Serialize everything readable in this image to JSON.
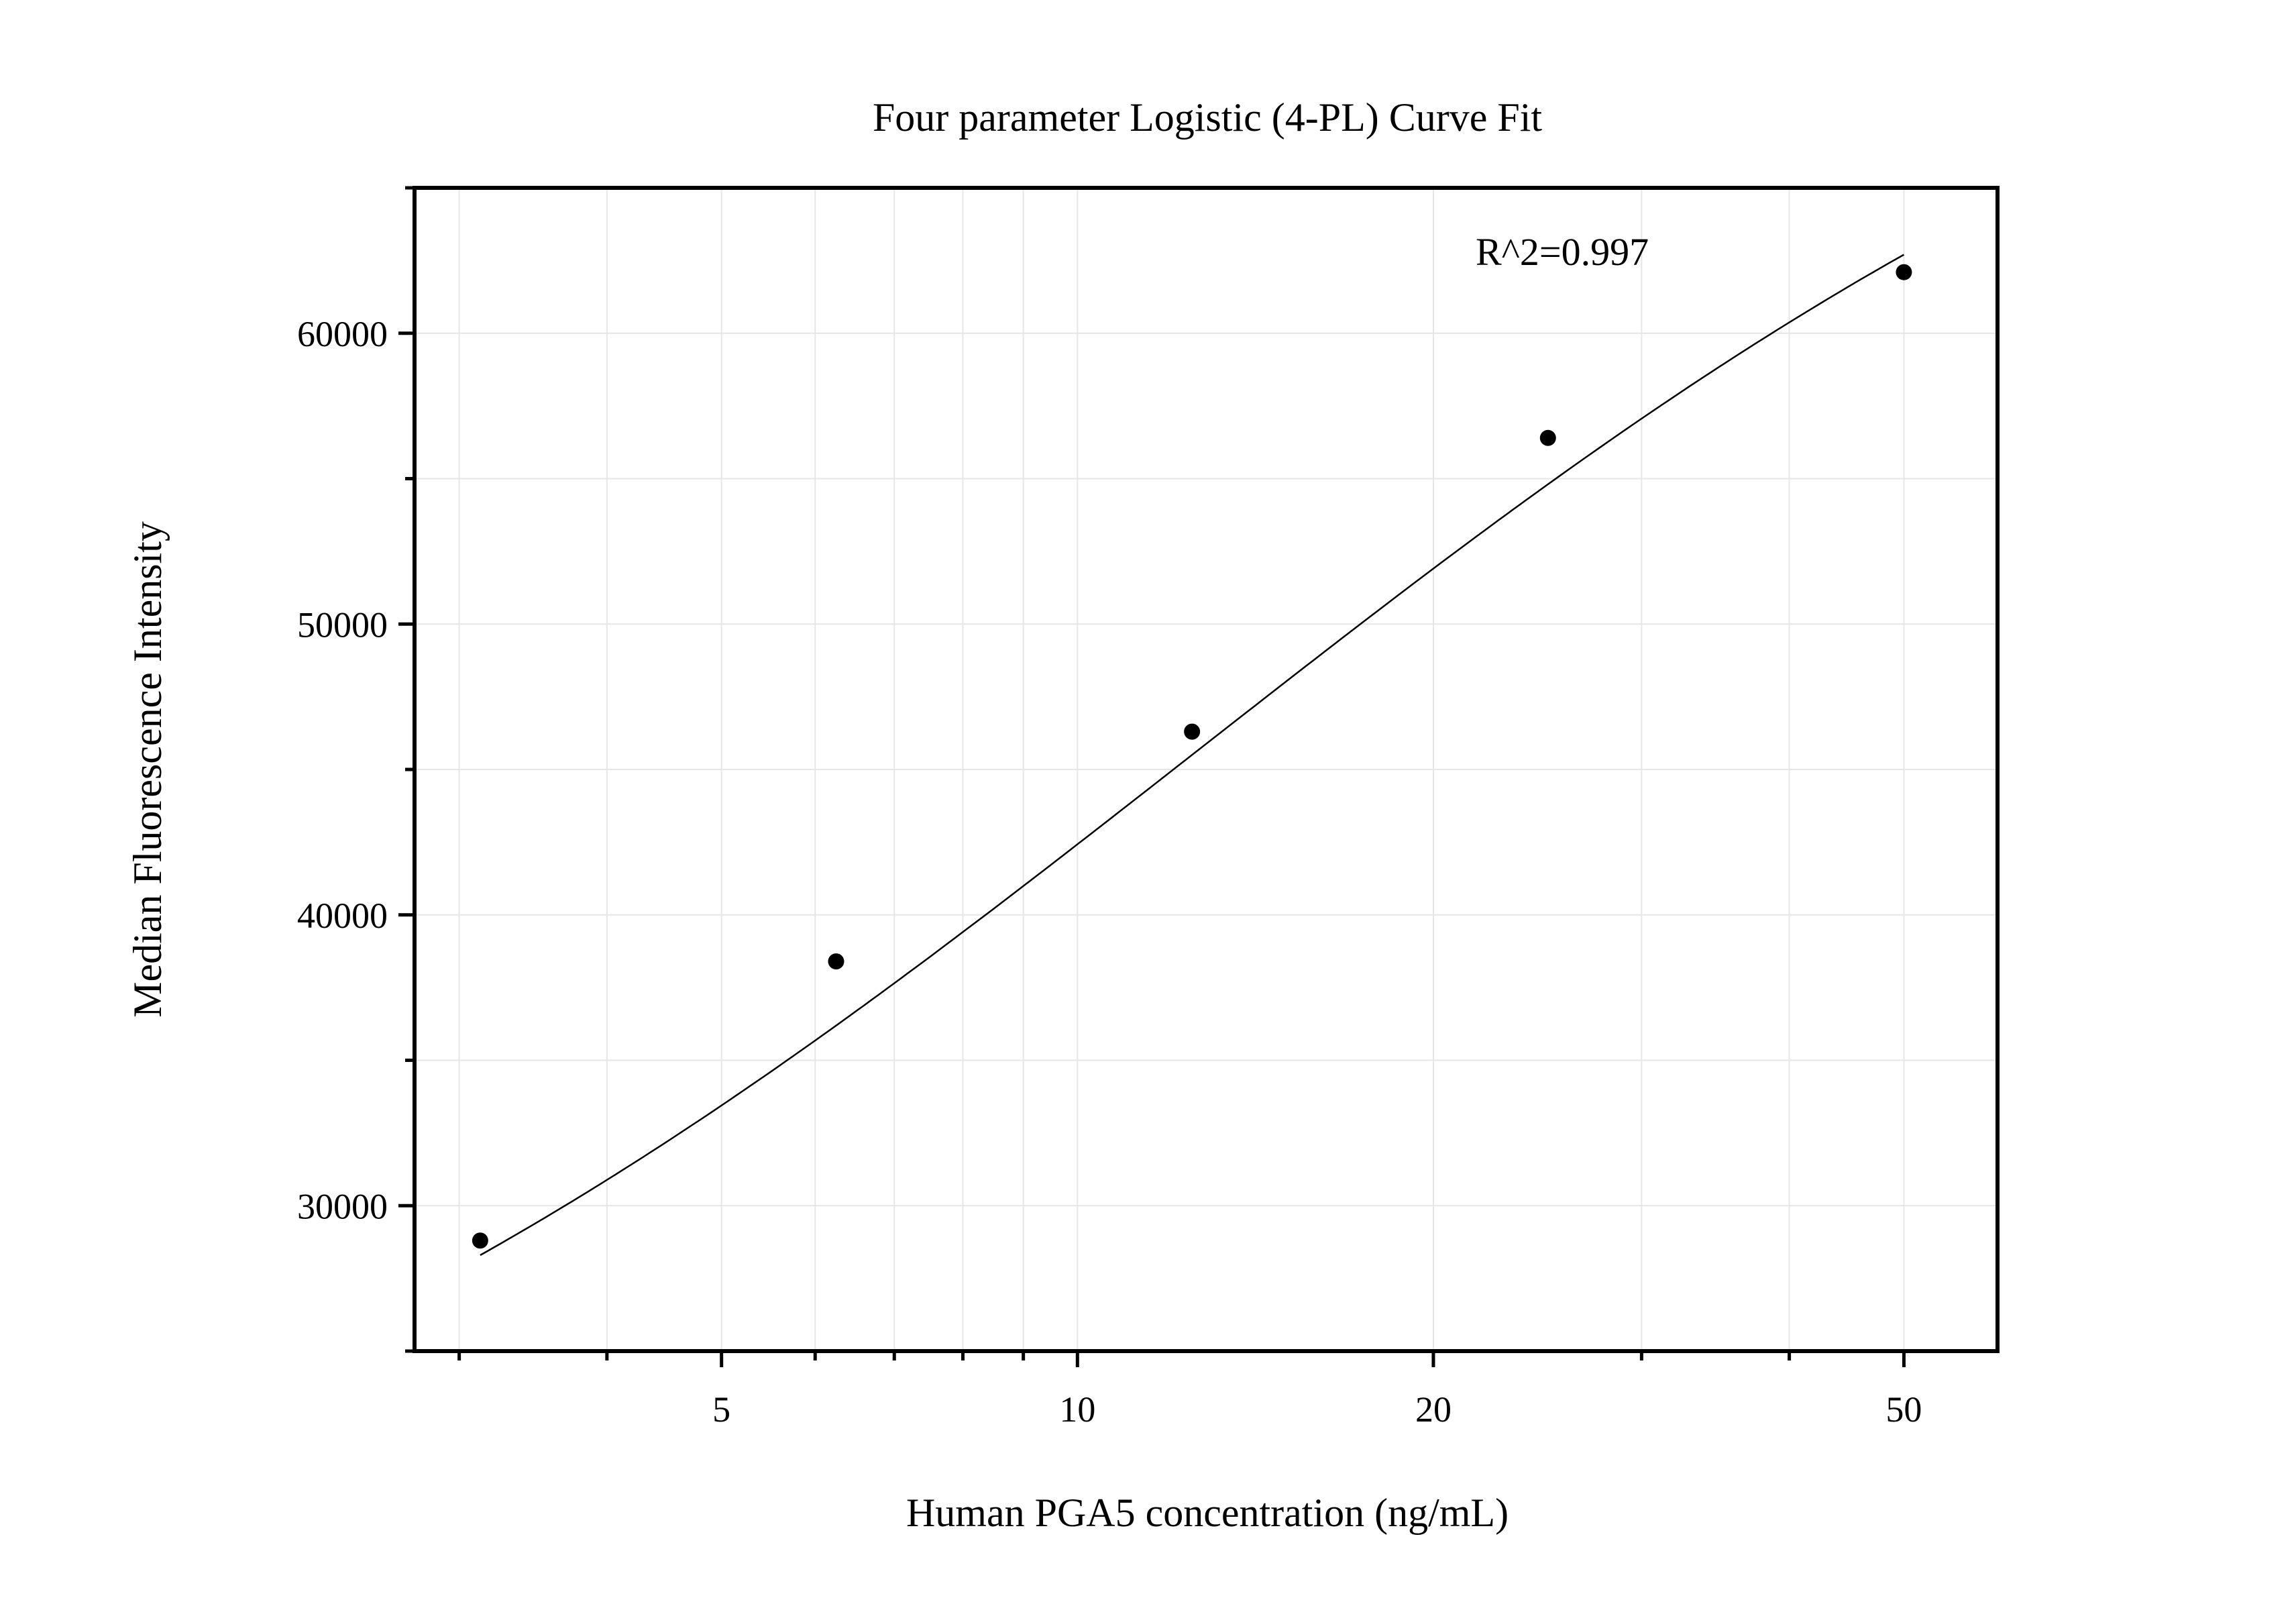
{
  "chart_data": {
    "type": "scatter",
    "title": "Four parameter Logistic (4-PL) Curve Fit",
    "xlabel": "Human PGA5 concentration (ng/mL)",
    "ylabel": "Median Fluorescence Intensity",
    "x_scale": "log",
    "xlim": [
      2.75,
      60
    ],
    "ylim": [
      25000,
      65000
    ],
    "x_ticks_major": [
      5,
      10,
      20,
      50
    ],
    "x_ticks_minor": [
      3,
      4,
      6,
      7,
      8,
      9,
      30,
      40,
      60
    ],
    "y_ticks_major": [
      30000,
      40000,
      50000,
      60000
    ],
    "y_ticks_minor": [
      25000,
      35000,
      45000,
      55000,
      65000
    ],
    "grid": true,
    "annotation": "R^2=0.997",
    "series": [
      {
        "x": [
          3.125,
          6.25,
          12.5,
          25,
          50
        ],
        "y": [
          28800,
          38400,
          46300,
          56400,
          62100
        ]
      }
    ],
    "fit": {
      "type": "4PL",
      "bottom": 13000,
      "top": 78000,
      "ec50": 12.5,
      "hill": 0.85
    },
    "colors": {
      "points": "#000000",
      "curve": "#000000",
      "grid": "#e6e6e6"
    }
  }
}
